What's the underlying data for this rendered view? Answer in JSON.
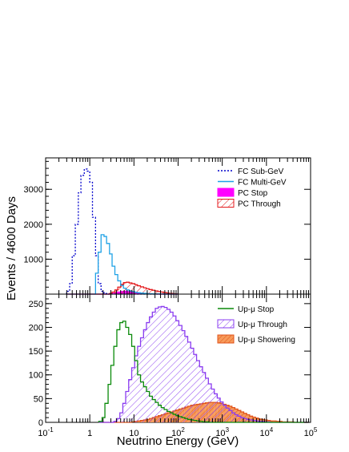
{
  "chart_data": [
    {
      "type": "line",
      "panel": "top",
      "xscale": "log",
      "xlim": [
        0.1,
        100000
      ],
      "ylim": [
        0,
        3900
      ],
      "yticks": [
        1000,
        2000,
        3000
      ],
      "ytick_labels": [
        "1000",
        "2000",
        "3000"
      ],
      "legend_position": "top-right",
      "x_edges": [
        0.3,
        0.35,
        0.4,
        0.47,
        0.55,
        0.63,
        0.75,
        0.87,
        1.0,
        1.15,
        1.35,
        1.55,
        1.8,
        2.1,
        2.4,
        2.8,
        3.2,
        3.7,
        4.3,
        5.0,
        5.8,
        6.7,
        7.8,
        9.0,
        10.5,
        12.0,
        14.0,
        16.5,
        19.0,
        22.0,
        26.0,
        30.0,
        35.0,
        40.0,
        47.0,
        55.0,
        63.0,
        75.0,
        87.0,
        100.0
      ],
      "series": [
        {
          "name": "FC Sub-GeV",
          "color": "#0000cc",
          "style": "dotted",
          "values": [
            80,
            300,
            1100,
            2000,
            2900,
            3400,
            3580,
            3520,
            3200,
            2200,
            1100,
            300,
            80,
            20,
            0,
            0,
            0,
            0,
            0,
            0,
            0,
            0,
            0,
            0,
            0,
            0,
            0,
            0,
            0,
            0,
            0,
            0,
            0,
            0,
            0,
            0,
            0,
            0,
            0
          ]
        },
        {
          "name": "FC Multi-GeV",
          "color": "#1fa2e6",
          "style": "solid",
          "values": [
            0,
            0,
            0,
            0,
            0,
            0,
            0,
            0,
            0,
            0,
            600,
            1200,
            1700,
            1650,
            1450,
            1150,
            800,
            560,
            380,
            250,
            170,
            120,
            90,
            70,
            50,
            40,
            30,
            22,
            15,
            12,
            8,
            6,
            4,
            3,
            2,
            1,
            0,
            0,
            0
          ]
        },
        {
          "name": "PC Stop",
          "color": "#ff00ff",
          "style": "fill",
          "values": [
            0,
            0,
            0,
            0,
            0,
            0,
            0,
            0,
            0,
            0,
            0,
            0,
            0,
            0,
            0,
            10,
            25,
            45,
            60,
            75,
            80,
            75,
            65,
            55,
            45,
            35,
            25,
            18,
            12,
            8,
            5,
            3,
            2,
            1,
            0,
            0,
            0,
            0,
            0
          ]
        },
        {
          "name": "PC Through",
          "color": "#e41a1c",
          "style": "hatch",
          "values": [
            0,
            0,
            0,
            0,
            0,
            0,
            0,
            0,
            0,
            0,
            0,
            0,
            0,
            0,
            0,
            20,
            60,
            120,
            200,
            280,
            330,
            340,
            320,
            300,
            270,
            240,
            210,
            180,
            155,
            130,
            110,
            90,
            75,
            60,
            45,
            30,
            20,
            10,
            5
          ]
        }
      ]
    },
    {
      "type": "line",
      "panel": "bottom",
      "xscale": "log",
      "xlim": [
        0.1,
        100000
      ],
      "ylim": [
        0,
        270
      ],
      "yticks": [
        0,
        50,
        100,
        150,
        200,
        250
      ],
      "ytick_labels": [
        "0",
        "50",
        "100",
        "150",
        "200",
        "250"
      ],
      "xticks": [
        0.1,
        1,
        10,
        100,
        1000,
        10000,
        100000
      ],
      "xtick_labels": [
        {
          "base": "10",
          "exp": "-1"
        },
        {
          "base": "1",
          "exp": ""
        },
        {
          "base": "10",
          "exp": ""
        },
        {
          "base": "10",
          "exp": "2"
        },
        {
          "base": "10",
          "exp": "3"
        },
        {
          "base": "10",
          "exp": "4"
        },
        {
          "base": "10",
          "exp": "5"
        }
      ],
      "legend_position": "top-right",
      "x_edges": [
        1.6,
        1.9,
        2.2,
        2.6,
        3.0,
        3.5,
        4.1,
        4.8,
        5.6,
        6.5,
        7.6,
        8.9,
        10.4,
        12.1,
        14.1,
        16.5,
        19.2,
        22.4,
        26.1,
        30.5,
        35.5,
        41.4,
        48.3,
        56.3,
        65.7,
        76.6,
        89.3,
        104,
        122,
        142,
        165,
        193,
        225,
        262,
        306,
        357,
        416,
        485,
        566,
        660,
        769,
        897,
        1046,
        1220,
        1422,
        1658,
        1933,
        2254,
        2629,
        3065,
        3574,
        4168,
        4859,
        5666,
        6607,
        7704,
        8983,
        10475,
        12214,
        14243,
        16608,
        19366,
        22582,
        26331,
        30704,
        35802,
        41748,
        48681,
        56765,
        66192,
        77184,
        90000
      ],
      "series": [
        {
          "name": "Up-μ Stop",
          "color": "#0a8a0a",
          "style": "solid",
          "values": [
            2,
            10,
            40,
            80,
            120,
            160,
            195,
            210,
            213,
            200,
            185,
            160,
            130,
            100,
            85,
            75,
            65,
            55,
            48,
            42,
            36,
            31,
            27,
            23,
            20,
            17,
            14,
            12,
            10,
            8,
            6,
            5,
            4,
            3,
            2,
            1,
            1,
            0,
            0,
            0,
            0,
            0,
            0,
            0,
            0,
            0,
            0,
            0,
            0,
            0,
            0,
            0,
            0,
            0,
            0,
            0,
            0,
            0,
            0,
            0,
            0,
            0,
            0,
            0,
            0,
            0,
            0,
            0,
            0,
            0,
            0
          ]
        },
        {
          "name": "Up-μ Through",
          "color": "#8a3cf0",
          "style": "hatch",
          "values": [
            0,
            0,
            0,
            0,
            0,
            2,
            8,
            20,
            40,
            65,
            90,
            115,
            140,
            160,
            178,
            195,
            210,
            222,
            232,
            240,
            243,
            244,
            242,
            238,
            232,
            224,
            214,
            204,
            193,
            181,
            169,
            156,
            143,
            130,
            117,
            105,
            93,
            81,
            70,
            60,
            51,
            43,
            36,
            30,
            25,
            20,
            16,
            13,
            10,
            8,
            6,
            5,
            4,
            3,
            2,
            2,
            1,
            1,
            0,
            0,
            0,
            0,
            0,
            0,
            0,
            0,
            0,
            0,
            0,
            0,
            0
          ]
        },
        {
          "name": "Up-μ Showering",
          "color": "#ff7f27",
          "style": "fill-hatch",
          "values": [
            0,
            0,
            0,
            0,
            0,
            0,
            0,
            0,
            0,
            0,
            0,
            1,
            2,
            3,
            4,
            5,
            6,
            8,
            10,
            12,
            14,
            16,
            18,
            20,
            22,
            24,
            26,
            28,
            30,
            32,
            34,
            36,
            37,
            38,
            39,
            40,
            41,
            42,
            42,
            42,
            41,
            40,
            38,
            36,
            34,
            31,
            28,
            25,
            22,
            19,
            16,
            13,
            11,
            9,
            7,
            6,
            5,
            4,
            3,
            3,
            2,
            2,
            1,
            1,
            1,
            1,
            0,
            0,
            0,
            0,
            0
          ]
        }
      ]
    }
  ],
  "labels": {
    "xlabel": "Neutrino Energy (GeV)",
    "ylabel": "Events / 4600 Days"
  }
}
